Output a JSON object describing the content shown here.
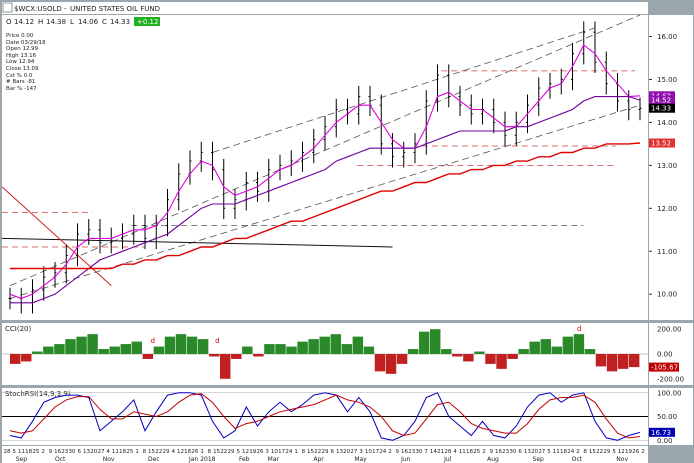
{
  "header": {
    "symbol": "$WCX:USOLD",
    "title": "UNITED STATES OIL FUND",
    "fields": [
      {
        "key": "O",
        "value": "14.12"
      },
      {
        "key": "H",
        "value": "14.38"
      },
      {
        "key": "L",
        "value": "14.06"
      },
      {
        "key": "C",
        "value": "14.33"
      },
      {
        "key": "chg",
        "value": "+0.12"
      }
    ]
  },
  "readout": [
    "Price 0.00",
    "Date 03/29/18",
    "Open 12.99",
    "High 13.16",
    "Low 12.94",
    "Close 13.09",
    "Cst % 0.0",
    "# Bars -81",
    "Bar % -147"
  ],
  "colors": {
    "price_bars": "#000000",
    "ma_short": "#e000e0",
    "ma_mid": "#7000a0",
    "ma_long": "#e00000",
    "channel": "#555555",
    "cci_pos": "#2a8a2a",
    "cci_neg": "#c02020",
    "stoch_k": "#0000c0",
    "stoch_d": "#c00000",
    "tag_last": "#000000",
    "tag_ma": "#9010b0",
    "tag_ma_long": "#e03030",
    "tag_cci": "#c00000",
    "tag_stoch": "#0000b0"
  },
  "chart_data": [
    {
      "type": "line",
      "panel": "price",
      "title": "",
      "ylabel": "",
      "ylim": [
        9.4,
        16.5
      ],
      "y_ticks": [
        10.0,
        11.0,
        12.0,
        13.0,
        14.0,
        15.0,
        16.0
      ],
      "x": [
        "Sep 28",
        "Oct 5",
        "Oct 12",
        "Oct 19",
        "Oct 26",
        "Nov 2",
        "Nov 9",
        "Nov 16",
        "Nov 23",
        "Nov 30",
        "Dec 7",
        "Dec 14",
        "Dec 21",
        "Dec 28",
        "Jan 4",
        "Jan 11",
        "Jan 18",
        "Jan 25",
        "Feb 1",
        "Feb 8",
        "Feb 15",
        "Feb 22",
        "Mar 1",
        "Mar 8",
        "Mar 15",
        "Mar 22",
        "Mar 29",
        "Apr 5",
        "Apr 12",
        "Apr 19",
        "Apr 26",
        "May 3",
        "May 10",
        "May 17",
        "May 24",
        "May 31",
        "Jun 7",
        "Jun 14",
        "Jun 21",
        "Jun 28",
        "Jul 5",
        "Jul 12",
        "Jul 19",
        "Jul 26",
        "Aug 2",
        "Aug 9",
        "Aug 16",
        "Aug 23",
        "Aug 30",
        "Sep 6",
        "Sep 13",
        "Sep 20",
        "Sep 27",
        "Oct 4",
        "Oct 11",
        "Oct 18",
        "Oct 25"
      ],
      "series": [
        {
          "name": "close",
          "values": [
            9.9,
            9.8,
            10.1,
            10.4,
            10.5,
            10.9,
            11.4,
            11.5,
            11.2,
            11.3,
            11.4,
            11.6,
            11.3,
            11.6,
            12.2,
            12.8,
            13.1,
            13.3,
            12.9,
            12.0,
            12.2,
            12.6,
            12.4,
            12.9,
            13.0,
            13.1,
            13.3,
            13.6,
            13.9,
            14.3,
            14.2,
            14.6,
            14.4,
            13.5,
            13.2,
            13.3,
            13.5,
            14.5,
            15.1,
            14.6,
            14.4,
            14.2,
            14.3,
            14.0,
            13.7,
            14.0,
            14.4,
            14.8,
            14.9,
            15.0,
            15.6,
            16.1,
            15.4,
            14.9,
            14.5,
            14.3,
            14.33
          ]
        },
        {
          "name": "",
          "values": [
            10.0,
            9.9,
            10.0,
            10.2,
            10.4,
            10.7,
            11.1,
            11.3,
            11.3,
            11.3,
            11.4,
            11.5,
            11.5,
            11.6,
            11.9,
            12.4,
            12.8,
            13.1,
            13.0,
            12.5,
            12.3,
            12.4,
            12.5,
            12.7,
            12.9,
            13.0,
            13.2,
            13.4,
            13.7,
            14.0,
            14.2,
            14.4,
            14.4,
            14.0,
            13.6,
            13.4,
            13.4,
            13.9,
            14.6,
            14.7,
            14.5,
            14.3,
            14.3,
            14.1,
            13.9,
            13.9,
            14.2,
            14.5,
            14.8,
            14.9,
            15.3,
            15.8,
            15.6,
            15.2,
            14.9,
            14.6,
            14.62
          ]
        },
        {
          "name": "",
          "values": [
            9.8,
            9.8,
            9.8,
            9.9,
            10.0,
            10.2,
            10.4,
            10.6,
            10.8,
            10.9,
            11.0,
            11.1,
            11.2,
            11.3,
            11.4,
            11.6,
            11.8,
            12.0,
            12.1,
            12.1,
            12.1,
            12.2,
            12.3,
            12.4,
            12.5,
            12.6,
            12.7,
            12.8,
            12.9,
            13.1,
            13.2,
            13.3,
            13.4,
            13.4,
            13.4,
            13.4,
            13.4,
            13.5,
            13.6,
            13.7,
            13.8,
            13.8,
            13.8,
            13.8,
            13.8,
            13.9,
            13.9,
            14.0,
            14.1,
            14.2,
            14.3,
            14.5,
            14.6,
            14.6,
            14.6,
            14.6,
            14.52
          ]
        },
        {
          "name": "",
          "values": [
            10.6,
            10.6,
            10.6,
            10.6,
            10.6,
            10.6,
            10.6,
            10.6,
            10.6,
            10.6,
            10.7,
            10.7,
            10.8,
            10.8,
            10.9,
            10.9,
            11.0,
            11.1,
            11.1,
            11.2,
            11.3,
            11.3,
            11.4,
            11.5,
            11.6,
            11.7,
            11.7,
            11.8,
            11.9,
            12.0,
            12.1,
            12.2,
            12.3,
            12.4,
            12.4,
            12.5,
            12.6,
            12.6,
            12.7,
            12.8,
            12.8,
            12.9,
            12.9,
            13.0,
            13.0,
            13.1,
            13.1,
            13.2,
            13.2,
            13.3,
            13.3,
            13.4,
            13.4,
            13.5,
            13.5,
            13.5,
            13.52
          ]
        }
      ],
      "last_values": [
        "14.62",
        "14.52",
        "14.33",
        "13.52"
      ]
    },
    {
      "type": "bar",
      "panel": "cci",
      "title": "CCI(20)",
      "ylim": [
        -250,
        250
      ],
      "y_ticks": [
        -200,
        0,
        200
      ],
      "y_tick_labels": [
        "-200.00",
        "0.00",
        "200.00"
      ],
      "values": [
        -80,
        -60,
        20,
        60,
        80,
        120,
        140,
        160,
        40,
        60,
        80,
        100,
        -40,
        60,
        140,
        160,
        140,
        120,
        -20,
        -200,
        -40,
        60,
        -20,
        80,
        80,
        60,
        100,
        120,
        140,
        160,
        80,
        140,
        60,
        -140,
        -160,
        -80,
        40,
        180,
        200,
        40,
        -20,
        -60,
        20,
        -80,
        -120,
        -40,
        40,
        100,
        120,
        60,
        140,
        160,
        40,
        -100,
        -140,
        -120,
        -105.67
      ],
      "last_value": "-105.67",
      "annotations": [
        "d",
        "d",
        "d"
      ]
    },
    {
      "type": "line",
      "panel": "stoch",
      "title": "StochRSI(14,9,3,9)",
      "ylim": [
        -10,
        110
      ],
      "y_ticks": [
        0,
        50,
        100
      ],
      "y_tick_labels": [
        "0.00",
        "50.00",
        "100.00"
      ],
      "series": [
        {
          "name": "",
          "values": [
            10,
            5,
            40,
            80,
            90,
            95,
            95,
            90,
            20,
            40,
            60,
            85,
            20,
            60,
            95,
            100,
            100,
            95,
            40,
            5,
            20,
            70,
            30,
            60,
            80,
            60,
            75,
            95,
            100,
            95,
            60,
            90,
            60,
            5,
            0,
            10,
            40,
            90,
            100,
            50,
            30,
            10,
            40,
            10,
            5,
            30,
            70,
            95,
            100,
            80,
            95,
            100,
            40,
            5,
            0,
            10,
            16.73
          ]
        },
        {
          "name": "",
          "values": [
            20,
            15,
            20,
            45,
            70,
            85,
            92,
            92,
            65,
            45,
            45,
            60,
            55,
            50,
            60,
            80,
            95,
            98,
            80,
            50,
            25,
            35,
            40,
            50,
            60,
            65,
            70,
            75,
            85,
            95,
            85,
            80,
            70,
            50,
            20,
            10,
            15,
            45,
            75,
            80,
            60,
            35,
            25,
            20,
            15,
            15,
            35,
            65,
            85,
            90,
            90,
            95,
            80,
            45,
            15,
            5,
            8
          ]
        }
      ],
      "last_value": "16.73"
    }
  ],
  "date_axis": {
    "day_labels": [
      "28",
      "5",
      "11",
      "18",
      "25",
      "2",
      "9",
      "16",
      "23",
      "30",
      "6",
      "13",
      "20",
      "27",
      "4",
      "11",
      "18",
      "25",
      "1",
      "8",
      "15",
      "22",
      "29",
      "4",
      "12",
      "18",
      "26",
      "1",
      "8",
      "15",
      "22",
      "29",
      "5",
      "12",
      "19",
      "26",
      "3",
      "10",
      "17",
      "24",
      "1",
      "8",
      "15",
      "22",
      "29",
      "6",
      "13",
      "20",
      "27",
      "3",
      "10",
      "17",
      "24",
      "2",
      "9",
      "16",
      "23",
      "30",
      "7",
      "14",
      "21",
      "28",
      "4",
      "11",
      "18",
      "25",
      "2",
      "9",
      "16",
      "23",
      "30",
      "6",
      "13",
      "20",
      "27",
      "5",
      "11",
      "18",
      "24",
      "2",
      "8",
      "15",
      "22",
      "29",
      "5",
      "12",
      "19",
      "26",
      "2"
    ],
    "month_labels": [
      {
        "label": "Sep",
        "frac": 0.03
      },
      {
        "label": "Oct",
        "frac": 0.09
      },
      {
        "label": "Nov",
        "frac": 0.165
      },
      {
        "label": "Dec",
        "frac": 0.235
      },
      {
        "label": "Jan 2018",
        "frac": 0.31
      },
      {
        "label": "Feb",
        "frac": 0.375
      },
      {
        "label": "Mar",
        "frac": 0.42
      },
      {
        "label": "Apr",
        "frac": 0.49
      },
      {
        "label": "May",
        "frac": 0.555
      },
      {
        "label": "Jun",
        "frac": 0.625
      },
      {
        "label": "Jul",
        "frac": 0.69
      },
      {
        "label": "Aug",
        "frac": 0.76
      },
      {
        "label": "Sep",
        "frac": 0.83
      },
      {
        "label": "Oct",
        "frac": 0.89
      },
      {
        "label": "Nov",
        "frac": 0.96
      }
    ]
  }
}
